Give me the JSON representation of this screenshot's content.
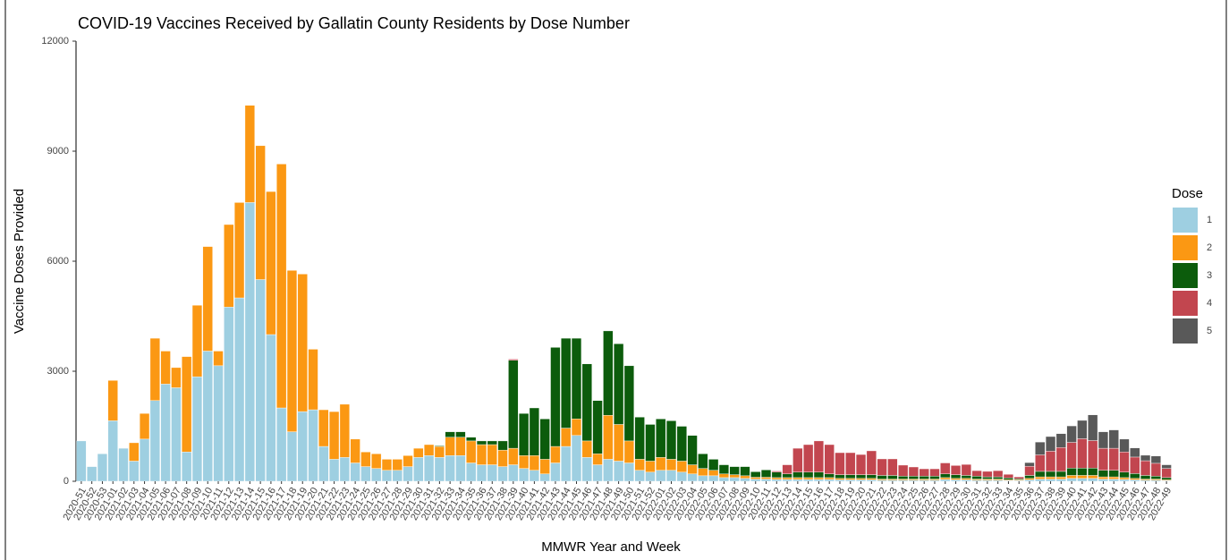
{
  "chart_data": {
    "type": "stacked_bar",
    "title": "COVID-19 Vaccines Received by Gallatin County Residents by Dose Number",
    "x_label": "MMWR Year and Week",
    "y_label": "Vaccine Doses Provided",
    "legend_title": "Dose",
    "legend_position": "right",
    "grid": false,
    "ylim": [
      0,
      12000
    ],
    "yticks": [
      0,
      3000,
      6000,
      9000,
      12000
    ],
    "categories": [
      "2020-51",
      "2020-52",
      "2020-53",
      "2021-01",
      "2021-02",
      "2021-03",
      "2021-04",
      "2021-05",
      "2021-06",
      "2021-07",
      "2021-08",
      "2021-09",
      "2021-10",
      "2021-11",
      "2021-12",
      "2021-13",
      "2021-14",
      "2021-15",
      "2021-16",
      "2021-17",
      "2021-18",
      "2021-19",
      "2021-20",
      "2021-21",
      "2021-22",
      "2021-23",
      "2021-24",
      "2021-25",
      "2021-26",
      "2021-27",
      "2021-28",
      "2021-29",
      "2021-30",
      "2021-31",
      "2021-32",
      "2021-33",
      "2021-34",
      "2021-35",
      "2021-36",
      "2021-37",
      "2021-38",
      "2021-39",
      "2021-40",
      "2021-41",
      "2021-42",
      "2021-43",
      "2021-44",
      "2021-45",
      "2021-46",
      "2021-47",
      "2021-48",
      "2021-49",
      "2021-50",
      "2021-51",
      "2021-52",
      "2022-01",
      "2022-02",
      "2022-03",
      "2022-04",
      "2022-05",
      "2022-06",
      "2022-07",
      "2022-08",
      "2022-09",
      "2022-10",
      "2022-11",
      "2022-12",
      "2022-13",
      "2022-14",
      "2022-15",
      "2022-16",
      "2022-17",
      "2022-18",
      "2022-19",
      "2022-20",
      "2022-21",
      "2022-22",
      "2022-23",
      "2022-24",
      "2022-25",
      "2022-26",
      "2022-27",
      "2022-28",
      "2022-29",
      "2022-30",
      "2022-31",
      "2022-32",
      "2022-33",
      "2022-34",
      "2022-35",
      "2022-36",
      "2022-37",
      "2022-38",
      "2022-39",
      "2022-40",
      "2022-41",
      "2022-42",
      "2022-43",
      "2022-44",
      "2022-45",
      "2022-46",
      "2022-47",
      "2022-48",
      "2022-49"
    ],
    "series": [
      {
        "name": "1",
        "color": "#9ecfe1",
        "values": [
          1100,
          400,
          750,
          1650,
          900,
          550,
          1150,
          2200,
          2650,
          2550,
          800,
          2850,
          3550,
          3150,
          4750,
          5000,
          7600,
          5500,
          4000,
          2000,
          1350,
          1900,
          1950,
          950,
          600,
          650,
          500,
          400,
          350,
          300,
          300,
          400,
          650,
          700,
          650,
          700,
          700,
          500,
          450,
          450,
          400,
          450,
          350,
          300,
          200,
          500,
          950,
          1250,
          650,
          450,
          600,
          550,
          500,
          300,
          250,
          300,
          300,
          250,
          200,
          150,
          150,
          100,
          100,
          80,
          60,
          60,
          50,
          50,
          50,
          50,
          50,
          50,
          40,
          40,
          40,
          40,
          30,
          30,
          30,
          30,
          30,
          30,
          50,
          40,
          40,
          30,
          30,
          30,
          20,
          20,
          40,
          60,
          60,
          60,
          80,
          80,
          80,
          60,
          60,
          50,
          40,
          30,
          30,
          20
        ]
      },
      {
        "name": "2",
        "color": "#fb9813",
        "values": [
          0,
          0,
          0,
          1100,
          0,
          500,
          700,
          1700,
          900,
          550,
          2600,
          1950,
          2850,
          400,
          2250,
          2600,
          2650,
          3650,
          3900,
          6650,
          4400,
          3750,
          1650,
          1000,
          1300,
          1450,
          650,
          400,
          400,
          300,
          300,
          300,
          250,
          300,
          300,
          500,
          500,
          600,
          550,
          550,
          450,
          450,
          350,
          400,
          400,
          450,
          500,
          450,
          450,
          300,
          1200,
          1000,
          600,
          300,
          300,
          350,
          300,
          300,
          250,
          200,
          150,
          100,
          80,
          70,
          50,
          50,
          50,
          50,
          50,
          50,
          50,
          50,
          40,
          40,
          40,
          40,
          30,
          30,
          30,
          30,
          30,
          30,
          50,
          40,
          40,
          30,
          30,
          30,
          20,
          20,
          40,
          60,
          60,
          60,
          80,
          80,
          80,
          60,
          60,
          50,
          40,
          30,
          30,
          20
        ]
      },
      {
        "name": "3",
        "color": "#0c5c0c",
        "values": [
          0,
          0,
          0,
          0,
          0,
          0,
          0,
          0,
          0,
          0,
          0,
          0,
          0,
          0,
          0,
          0,
          0,
          0,
          0,
          0,
          0,
          0,
          0,
          0,
          0,
          0,
          0,
          0,
          0,
          0,
          0,
          0,
          0,
          0,
          20,
          150,
          150,
          100,
          100,
          100,
          250,
          2400,
          1150,
          1300,
          1100,
          2700,
          2450,
          2200,
          2100,
          1450,
          2300,
          2200,
          2050,
          1150,
          1000,
          1050,
          1050,
          950,
          800,
          400,
          300,
          250,
          220,
          250,
          150,
          200,
          150,
          100,
          150,
          150,
          150,
          100,
          100,
          100,
          100,
          100,
          100,
          100,
          80,
          80,
          80,
          80,
          100,
          100,
          80,
          80,
          60,
          60,
          50,
          30,
          80,
          150,
          150,
          150,
          200,
          200,
          200,
          180,
          180,
          150,
          130,
          100,
          80,
          60
        ]
      },
      {
        "name": "4",
        "color": "#c2464f",
        "values": [
          0,
          0,
          0,
          0,
          0,
          0,
          0,
          0,
          0,
          0,
          0,
          0,
          0,
          0,
          0,
          0,
          0,
          0,
          0,
          0,
          0,
          0,
          0,
          0,
          0,
          0,
          0,
          0,
          0,
          0,
          0,
          0,
          0,
          0,
          0,
          0,
          0,
          0,
          0,
          0,
          0,
          30,
          0,
          0,
          0,
          0,
          0,
          0,
          0,
          0,
          0,
          0,
          0,
          0,
          0,
          0,
          0,
          0,
          0,
          0,
          0,
          0,
          0,
          0,
          0,
          0,
          30,
          250,
          650,
          750,
          850,
          800,
          600,
          600,
          550,
          650,
          450,
          450,
          300,
          250,
          200,
          200,
          300,
          250,
          300,
          150,
          150,
          170,
          100,
          50,
          250,
          450,
          550,
          650,
          700,
          800,
          750,
          600,
          600,
          550,
          450,
          400,
          350,
          250
        ]
      },
      {
        "name": "5",
        "color": "#595959",
        "values": [
          0,
          0,
          0,
          0,
          0,
          0,
          0,
          0,
          0,
          0,
          0,
          0,
          0,
          0,
          0,
          0,
          0,
          0,
          0,
          0,
          0,
          0,
          0,
          0,
          0,
          0,
          0,
          0,
          0,
          0,
          0,
          0,
          0,
          0,
          0,
          0,
          0,
          0,
          0,
          0,
          0,
          0,
          0,
          0,
          0,
          0,
          0,
          0,
          0,
          0,
          0,
          0,
          0,
          0,
          0,
          0,
          0,
          0,
          0,
          0,
          0,
          0,
          0,
          0,
          0,
          0,
          0,
          0,
          0,
          0,
          0,
          0,
          0,
          0,
          0,
          0,
          0,
          0,
          0,
          0,
          0,
          0,
          0,
          0,
          0,
          0,
          0,
          0,
          0,
          0,
          100,
          350,
          400,
          380,
          450,
          500,
          700,
          450,
          500,
          350,
          250,
          150,
          200,
          100
        ]
      }
    ]
  }
}
